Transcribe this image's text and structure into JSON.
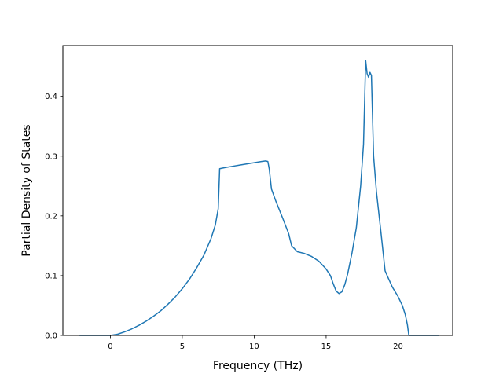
{
  "chart_data": {
    "type": "line",
    "title": "",
    "xlabel": "Frequency (THz)",
    "ylabel": "Partial Density of States",
    "xlim": [
      -3.3,
      23.8
    ],
    "ylim": [
      0.0,
      0.485
    ],
    "xticks": [
      0,
      5,
      10,
      15,
      20
    ],
    "yticks": [
      0.0,
      0.1,
      0.2,
      0.3,
      0.4
    ],
    "xtick_labels": [
      "0",
      "5",
      "10",
      "15",
      "20"
    ],
    "ytick_labels": [
      "0.0",
      "0.1",
      "0.2",
      "0.3",
      "0.4"
    ],
    "grid": false,
    "legend": false,
    "line_color": "#1f77b4",
    "series": [
      {
        "x": [
          -2.1,
          -1.0,
          0.0,
          0.5,
          1.0,
          1.5,
          2.0,
          2.5,
          3.0,
          3.5,
          4.0,
          4.5,
          5.0,
          5.5,
          6.0,
          6.5,
          7.0,
          7.3,
          7.5,
          7.6,
          8.0,
          8.5,
          9.0,
          9.5,
          10.0,
          10.5,
          10.8,
          10.95,
          11.05,
          11.2,
          11.5,
          12.0,
          12.4,
          12.6,
          13.0,
          13.5,
          14.0,
          14.5,
          15.0,
          15.3,
          15.5,
          15.7,
          15.9,
          16.1,
          16.3,
          16.5,
          16.8,
          17.1,
          17.4,
          17.6,
          17.75,
          17.85,
          17.95,
          18.05,
          18.15,
          18.3,
          18.5,
          18.8,
          19.1,
          19.3,
          19.6,
          20.0,
          20.3,
          20.5,
          20.65,
          20.75,
          21.5,
          22.8
        ],
        "y": [
          0.0,
          0.0,
          0.0,
          0.002,
          0.006,
          0.011,
          0.017,
          0.024,
          0.032,
          0.041,
          0.052,
          0.064,
          0.078,
          0.094,
          0.113,
          0.134,
          0.162,
          0.185,
          0.212,
          0.279,
          0.281,
          0.283,
          0.285,
          0.287,
          0.289,
          0.291,
          0.292,
          0.291,
          0.278,
          0.245,
          0.225,
          0.195,
          0.17,
          0.15,
          0.14,
          0.137,
          0.132,
          0.124,
          0.111,
          0.1,
          0.086,
          0.074,
          0.07,
          0.073,
          0.085,
          0.103,
          0.138,
          0.18,
          0.25,
          0.32,
          0.46,
          0.438,
          0.432,
          0.44,
          0.435,
          0.3,
          0.24,
          0.175,
          0.108,
          0.097,
          0.081,
          0.065,
          0.05,
          0.035,
          0.018,
          0.0,
          0.0,
          0.0
        ]
      }
    ]
  }
}
